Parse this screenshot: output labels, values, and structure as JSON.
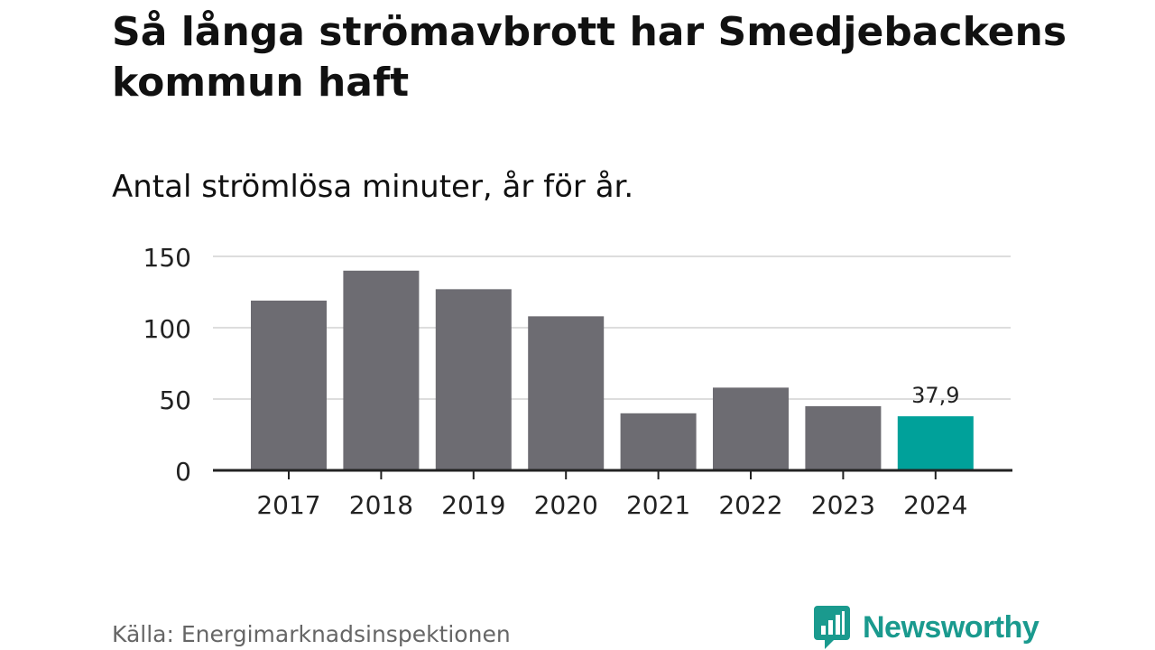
{
  "title": "Så långa strömavbrott har Smedjebackens kommun haft",
  "subtitle": "Antal strömlösa minuter, år för år.",
  "source": "Källa: Energimarknadsinspektionen",
  "brand": {
    "name": "Newsworthy",
    "color": "#1a9a8e"
  },
  "colors": {
    "bar": "#6d6c72",
    "highlight": "#00a19a",
    "grid": "#dddddd",
    "axis": "#222222",
    "text": "#222222"
  },
  "chart_data": {
    "type": "bar",
    "title": "Så långa strömavbrott har Smedjebackens kommun haft",
    "subtitle": "Antal strömlösa minuter, år för år.",
    "xlabel": "",
    "ylabel": "",
    "categories": [
      "2017",
      "2018",
      "2019",
      "2020",
      "2021",
      "2022",
      "2023",
      "2024"
    ],
    "values": [
      119,
      140,
      127,
      108,
      40,
      58,
      45,
      37.9
    ],
    "highlight_index": 7,
    "highlight_label": "37,9",
    "ylim": [
      0,
      150
    ],
    "yticks": [
      0,
      50,
      100,
      150
    ],
    "grid": true
  }
}
